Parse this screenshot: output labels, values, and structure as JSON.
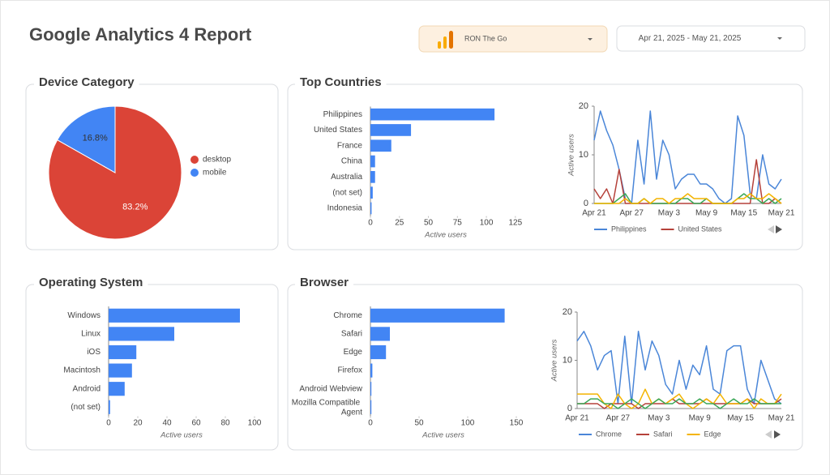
{
  "header": {
    "title": "Google Analytics 4 Report",
    "property": "RON The Go",
    "date_range": "Apr 21, 2025 - May 21, 2025"
  },
  "chart_data": [
    {
      "type": "pie",
      "title": "Device Category",
      "categories": [
        "desktop",
        "mobile"
      ],
      "values": [
        83.2,
        16.8
      ],
      "value_labels": [
        "83.2%",
        "16.8%"
      ],
      "colors": [
        "#db4437",
        "#4285f4"
      ],
      "legend": "right"
    },
    {
      "type": "bar",
      "orientation": "horizontal",
      "title": "Top Countries",
      "categories": [
        "Philippines",
        "United States",
        "France",
        "China",
        "Australia",
        "(not set)",
        "Indonesia"
      ],
      "values": [
        107,
        35,
        18,
        4,
        4,
        2,
        1
      ],
      "color": "#4285f4",
      "xlim": [
        0,
        130
      ],
      "xticks": [
        0,
        25,
        50,
        75,
        100,
        125
      ],
      "x_label": "Active users"
    },
    {
      "type": "line",
      "categories": [
        "Apr 21",
        null,
        null,
        null,
        null,
        null,
        "Apr 27",
        null,
        null,
        null,
        null,
        null,
        "May 3",
        null,
        null,
        null,
        null,
        null,
        "May 9",
        null,
        null,
        null,
        null,
        null,
        "May 15",
        null,
        null,
        null,
        null,
        null,
        "May 21"
      ],
      "series": [
        {
          "name": "Philippines",
          "color": "#4a86d8",
          "values": [
            13,
            19,
            15,
            12,
            7,
            1,
            0,
            13,
            4,
            19,
            5,
            13,
            10,
            3,
            5,
            6,
            6,
            4,
            4,
            3,
            1,
            0,
            1,
            18,
            14,
            2,
            1,
            10,
            4,
            3,
            5
          ]
        },
        {
          "name": "United States",
          "color": "#b5413a",
          "values": [
            3,
            1,
            3,
            0,
            7,
            0,
            0,
            0,
            0,
            0,
            0,
            0,
            0,
            0,
            0,
            0,
            0,
            0,
            0,
            0,
            0,
            0,
            0,
            0,
            0,
            0,
            9,
            0,
            0,
            1,
            0
          ]
        },
        {
          "color": "#3aa757",
          "values": [
            0,
            0,
            0,
            0,
            1,
            2,
            0,
            0,
            1,
            0,
            0,
            0,
            0,
            0,
            1,
            1,
            0,
            0,
            1,
            0,
            0,
            0,
            0,
            1,
            2,
            1,
            1,
            0,
            1,
            0,
            1
          ]
        },
        {
          "color": "#f4b400",
          "values": [
            0,
            0,
            0,
            0,
            0,
            1,
            0,
            0,
            1,
            0,
            1,
            1,
            0,
            1,
            1,
            2,
            1,
            1,
            1,
            0,
            0,
            0,
            0,
            1,
            1,
            2,
            1,
            1,
            2,
            1,
            0
          ]
        }
      ],
      "ylim": [
        0,
        20
      ],
      "yticks": [
        0,
        10,
        20
      ],
      "y_label": "Active users",
      "legend": "bottom"
    },
    {
      "type": "bar",
      "orientation": "horizontal",
      "title": "Operating System",
      "categories": [
        "Windows",
        "Linux",
        "iOS",
        "Macintosh",
        "Android",
        "(not set)"
      ],
      "values": [
        90,
        45,
        19,
        16,
        11,
        1
      ],
      "color": "#4285f4",
      "xlim": [
        0,
        100
      ],
      "xticks": [
        0,
        20,
        40,
        60,
        80,
        100
      ],
      "x_label": "Active users"
    },
    {
      "type": "bar",
      "orientation": "horizontal",
      "title": "Browser",
      "categories": [
        "Chrome",
        "Safari",
        "Edge",
        "Firefox",
        "Android Webview",
        "Mozilla Compatible Agent"
      ],
      "values": [
        138,
        20,
        16,
        2,
        1,
        1
      ],
      "color": "#4285f4",
      "xlim": [
        0,
        150
      ],
      "xticks": [
        0,
        50,
        100,
        150
      ],
      "x_label": "Active users"
    },
    {
      "type": "line",
      "categories": [
        "Apr 21",
        null,
        null,
        null,
        null,
        null,
        "Apr 27",
        null,
        null,
        null,
        null,
        null,
        "May 3",
        null,
        null,
        null,
        null,
        null,
        "May 9",
        null,
        null,
        null,
        null,
        null,
        "May 15",
        null,
        null,
        null,
        null,
        null,
        "May 21"
      ],
      "series": [
        {
          "name": "Chrome",
          "color": "#4a86d8",
          "values": [
            14,
            16,
            13,
            8,
            11,
            12,
            1,
            15,
            1,
            16,
            8,
            14,
            11,
            5,
            3,
            10,
            4,
            9,
            7,
            13,
            4,
            3,
            12,
            13,
            13,
            4,
            1,
            10,
            6,
            2,
            1
          ]
        },
        {
          "name": "Safari",
          "color": "#b5413a",
          "values": [
            1,
            1,
            1,
            1,
            0,
            1,
            1,
            1,
            1,
            0,
            1,
            1,
            1,
            1,
            2,
            1,
            1,
            1,
            1,
            2,
            1,
            1,
            1,
            1,
            1,
            2,
            1,
            1,
            1,
            1,
            2
          ]
        },
        {
          "name": "Edge",
          "color": "#f4b400",
          "values": [
            3,
            3,
            3,
            3,
            1,
            0,
            3,
            1,
            0,
            1,
            4,
            1,
            2,
            1,
            2,
            3,
            1,
            0,
            1,
            2,
            1,
            3,
            1,
            1,
            1,
            2,
            0,
            2,
            1,
            1,
            3
          ]
        },
        {
          "color": "#3aa757",
          "values": [
            1,
            1,
            2,
            2,
            1,
            1,
            0,
            1,
            2,
            1,
            0,
            1,
            2,
            1,
            1,
            2,
            1,
            1,
            2,
            1,
            1,
            0,
            1,
            2,
            1,
            1,
            2,
            1,
            1,
            1,
            1
          ]
        }
      ],
      "ylim": [
        0,
        20
      ],
      "yticks": [
        0,
        10,
        20
      ],
      "y_label": "Active users",
      "legend": "bottom"
    }
  ]
}
